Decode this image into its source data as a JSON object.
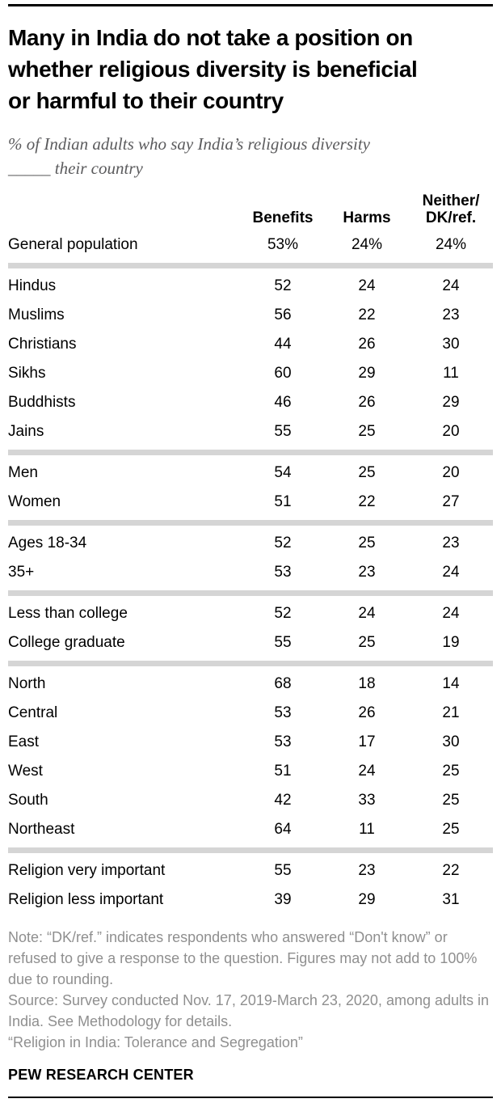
{
  "chart_data": {
    "type": "table",
    "title": "Many in India do not take a position on whether religious diversity is beneficial or harmful to their country",
    "title_lines": [
      "Many in India do not take a position on",
      "whether religious diversity is beneficial",
      "or harmful to their country"
    ],
    "subtitle": "% of Indian adults who say India’s religious diversity _____ their country",
    "subtitle_lines": [
      "% of Indian adults who say India’s religious diversity",
      "_____ their country"
    ],
    "columns": [
      "Benefits",
      "Harms",
      "Neither/\nDK/ref."
    ],
    "groups": [
      {
        "rows": [
          {
            "label": "General population",
            "values": [
              "53%",
              "24%",
              "24%"
            ]
          }
        ]
      },
      {
        "rows": [
          {
            "label": "Hindus",
            "values": [
              "52",
              "24",
              "24"
            ]
          },
          {
            "label": "Muslims",
            "values": [
              "56",
              "22",
              "23"
            ]
          },
          {
            "label": "Christians",
            "values": [
              "44",
              "26",
              "30"
            ]
          },
          {
            "label": "Sikhs",
            "values": [
              "60",
              "29",
              "11"
            ]
          },
          {
            "label": "Buddhists",
            "values": [
              "46",
              "26",
              "29"
            ]
          },
          {
            "label": "Jains",
            "values": [
              "55",
              "25",
              "20"
            ]
          }
        ]
      },
      {
        "rows": [
          {
            "label": "Men",
            "values": [
              "54",
              "25",
              "20"
            ]
          },
          {
            "label": "Women",
            "values": [
              "51",
              "22",
              "27"
            ]
          }
        ]
      },
      {
        "rows": [
          {
            "label": "Ages 18-34",
            "values": [
              "52",
              "25",
              "23"
            ]
          },
          {
            "label": "35+",
            "values": [
              "53",
              "23",
              "24"
            ]
          }
        ]
      },
      {
        "rows": [
          {
            "label": "Less than college",
            "values": [
              "52",
              "24",
              "24"
            ]
          },
          {
            "label": "College graduate",
            "values": [
              "55",
              "25",
              "19"
            ]
          }
        ]
      },
      {
        "rows": [
          {
            "label": "North",
            "values": [
              "68",
              "18",
              "14"
            ]
          },
          {
            "label": "Central",
            "values": [
              "53",
              "26",
              "21"
            ]
          },
          {
            "label": "East",
            "values": [
              "53",
              "17",
              "30"
            ]
          },
          {
            "label": "West",
            "values": [
              "51",
              "24",
              "25"
            ]
          },
          {
            "label": "South",
            "values": [
              "42",
              "33",
              "25"
            ]
          },
          {
            "label": "Northeast",
            "values": [
              "64",
              "11",
              "25"
            ]
          }
        ]
      },
      {
        "rows": [
          {
            "label": "Religion very important",
            "values": [
              "55",
              "23",
              "22"
            ]
          },
          {
            "label": "Religion less important",
            "values": [
              "39",
              "29",
              "31"
            ]
          }
        ]
      }
    ]
  },
  "footer": {
    "note": "Note: “DK/ref.” indicates respondents who answered “Don't know” or refused to give a response to the question. Figures may not add to 100% due to rounding.",
    "source": "Source: Survey conducted Nov. 17, 2019-March 23, 2020, among adults in India. See Methodology for details.",
    "report": "“Religion in India: Tolerance and Segregation”",
    "brand": "PEW RESEARCH CENTER"
  },
  "colors": {
    "text": "#000000",
    "subtitle_gray": "#5b5b5d",
    "footnote_gray": "#8f8f8f",
    "section_divider": "#d5d5d5",
    "rule": "#000000"
  }
}
